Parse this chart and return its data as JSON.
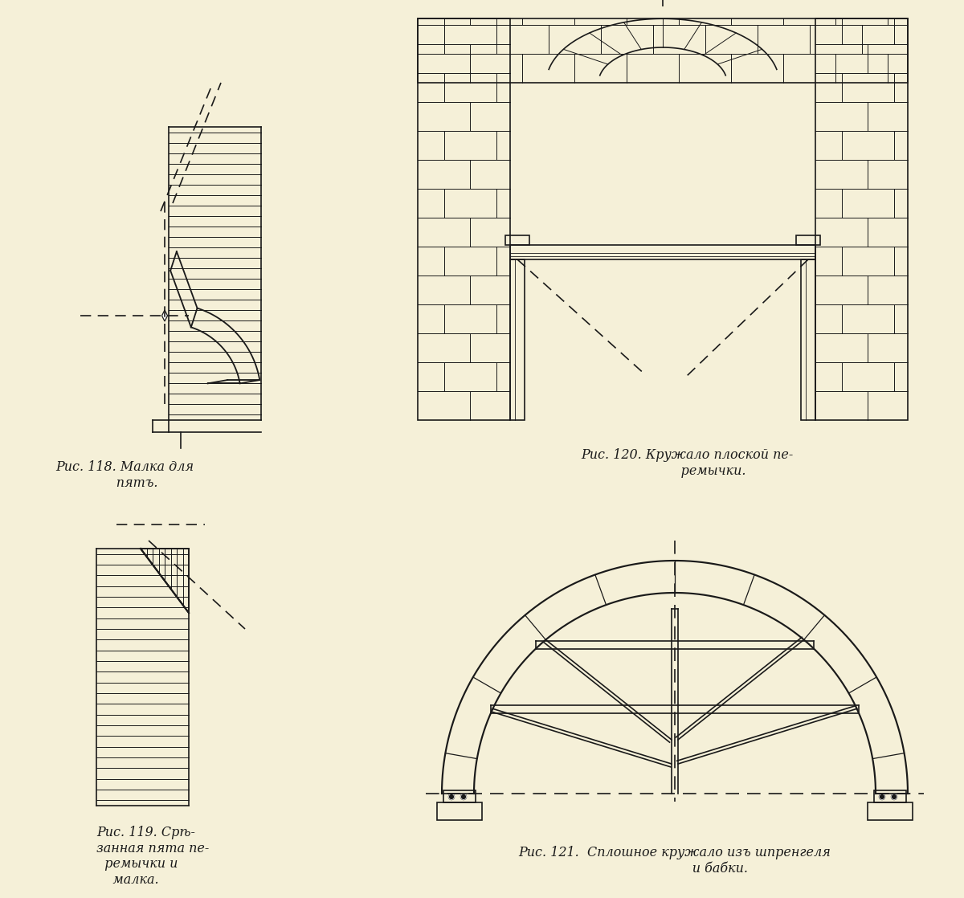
{
  "bg_color": "#F5F0D8",
  "line_color": "#1a1a1a",
  "captions": {
    "fig118": "Рис. 118. Малка для\n      пятъ.",
    "fig119": "Рис. 119. Срѣ-\nзанная пята пе-\n  ремычки и\n    малка.",
    "fig120": "Рис. 120. Кружало плоской пе-\n             ремычки.",
    "fig121": "Рис. 121.  Сплошное кружало изъ шпренгеля\n                      и бабки."
  },
  "caption_fontsize": 11.5,
  "lw": 1.2
}
